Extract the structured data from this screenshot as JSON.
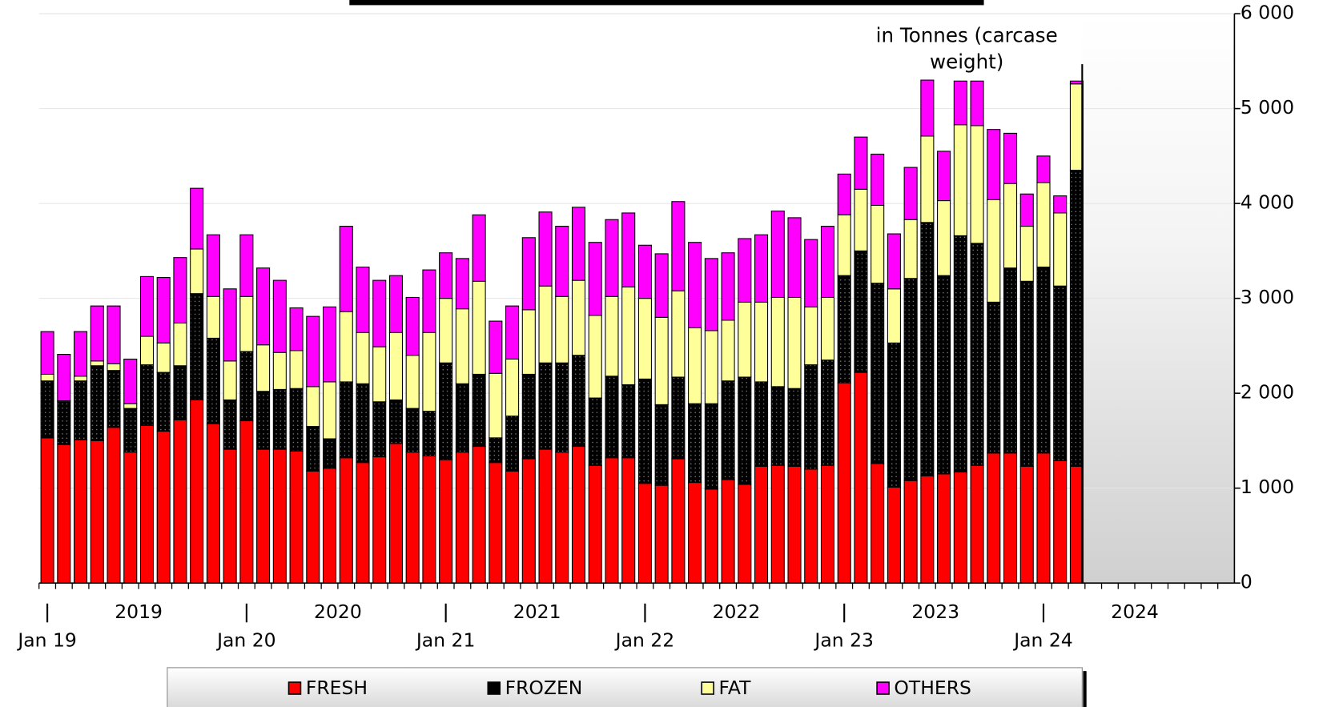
{
  "chart_data": {
    "type": "stacked-bar",
    "annotation": "in Tonnes (carcase weight)",
    "categories": [
      "Jan 19",
      null,
      null,
      null,
      null,
      null,
      null,
      null,
      null,
      null,
      null,
      null,
      "Jan 20",
      null,
      null,
      null,
      null,
      null,
      null,
      null,
      null,
      null,
      null,
      null,
      "Jan 21",
      null,
      null,
      null,
      null,
      null,
      null,
      null,
      null,
      null,
      null,
      null,
      "Jan 22",
      null,
      null,
      null,
      null,
      null,
      null,
      null,
      null,
      null,
      null,
      null,
      "Jan 23",
      null,
      null,
      null,
      null,
      null,
      null,
      null,
      null,
      null,
      null,
      null,
      "Jan 24",
      null,
      null,
      null,
      null,
      null,
      null,
      null,
      null,
      null,
      null,
      null
    ],
    "year_labels": [
      "2019",
      "2020",
      "2021",
      "2022",
      "2023",
      "2024"
    ],
    "series": [
      {
        "name": "FRESH",
        "color": "#ff0000",
        "values": [
          1530,
          1460,
          1510,
          1500,
          1640,
          1380,
          1660,
          1600,
          1720,
          1930,
          1680,
          1410,
          1710,
          1410,
          1410,
          1390,
          1180,
          1210,
          1320,
          1270,
          1330,
          1470,
          1380,
          1340,
          1300,
          1380,
          1440,
          1270,
          1180,
          1310,
          1410,
          1380,
          1440,
          1240,
          1320,
          1320,
          1050,
          1030,
          1310,
          1060,
          990,
          1090,
          1040,
          1230,
          1240,
          1230,
          1200,
          1240,
          2110,
          2220,
          1260,
          1010,
          1080,
          1130,
          1150,
          1170,
          1240,
          1370,
          1370,
          1230,
          1370,
          1290,
          1230,
          null,
          null,
          null,
          null,
          null,
          null,
          null,
          null,
          null
        ]
      },
      {
        "name": "FROZEN",
        "color": "#000000",
        "values": [
          600,
          450,
          620,
          790,
          600,
          460,
          640,
          620,
          570,
          1120,
          900,
          520,
          730,
          610,
          630,
          660,
          470,
          310,
          800,
          830,
          580,
          460,
          460,
          470,
          1020,
          720,
          760,
          260,
          580,
          890,
          910,
          940,
          960,
          710,
          860,
          770,
          1100,
          850,
          860,
          830,
          900,
          1040,
          1130,
          890,
          830,
          820,
          1100,
          1110,
          1130,
          1280,
          1900,
          1520,
          2130,
          2670,
          2090,
          2490,
          2340,
          1590,
          1950,
          1950,
          1960,
          1840,
          3120,
          null,
          null,
          null,
          null,
          null,
          null,
          null,
          null,
          null
        ]
      },
      {
        "name": "FAT",
        "color": "#ffff99",
        "values": [
          70,
          10,
          50,
          50,
          70,
          50,
          300,
          310,
          450,
          470,
          440,
          410,
          580,
          490,
          390,
          400,
          420,
          600,
          740,
          540,
          580,
          710,
          560,
          830,
          680,
          790,
          980,
          680,
          600,
          680,
          810,
          700,
          790,
          870,
          840,
          1030,
          850,
          920,
          910,
          800,
          770,
          640,
          790,
          840,
          940,
          960,
          610,
          660,
          640,
          650,
          820,
          570,
          620,
          910,
          790,
          1170,
          1240,
          1080,
          890,
          580,
          890,
          770,
          910,
          null,
          null,
          null,
          null,
          null,
          null,
          null,
          null,
          null
        ]
      },
      {
        "name": "OTHERS",
        "color": "#ff00ff",
        "values": [
          450,
          490,
          470,
          580,
          610,
          470,
          630,
          690,
          690,
          640,
          650,
          760,
          650,
          810,
          760,
          450,
          740,
          790,
          900,
          690,
          700,
          600,
          610,
          660,
          480,
          530,
          700,
          550,
          560,
          760,
          780,
          740,
          770,
          770,
          810,
          780,
          560,
          670,
          940,
          900,
          760,
          710,
          670,
          710,
          910,
          840,
          710,
          750,
          430,
          550,
          540,
          580,
          550,
          590,
          520,
          460,
          470,
          740,
          530,
          340,
          280,
          180,
          30,
          null,
          null,
          null,
          null,
          null,
          null,
          null,
          null,
          null
        ]
      }
    ],
    "ylim": [
      0,
      6000
    ],
    "yticks": [
      0,
      {
        "value": 1000,
        "label": "1 000"
      },
      {
        "value": 2000,
        "label": "2 000"
      },
      {
        "value": 3000,
        "label": "3 000"
      },
      {
        "value": 4000,
        "label": "4 000"
      },
      {
        "value": 5000,
        "label": "5 000"
      },
      {
        "value": 6000,
        "label": "6 000"
      }
    ],
    "grid": true
  }
}
